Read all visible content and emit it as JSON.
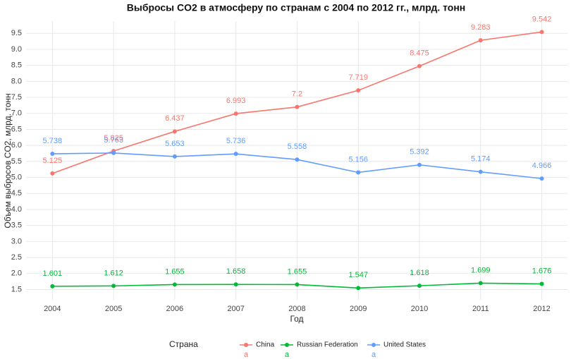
{
  "chart_data": {
    "type": "line",
    "title": "Выбросы CO2 в атмосферу по странам с 2004 по 2012 гг., млрд. тонн",
    "x_label": "Год",
    "y_label": "Объем выбросов CO2, млрд. тонн",
    "legend_title": "Страна",
    "legend_key_text": "a",
    "legend_position": "bottom",
    "grid": true,
    "x": [
      2004,
      2005,
      2006,
      2007,
      2008,
      2009,
      2010,
      2011,
      2012
    ],
    "xlim": [
      2003.57,
      2012.42
    ],
    "xticks": [
      2004,
      2005,
      2006,
      2007,
      2008,
      2009,
      2010,
      2011,
      2012
    ],
    "ylim": [
      1.18,
      9.88
    ],
    "yticks": [
      1.5,
      {
        "value": 2,
        "label": "2.0"
      },
      2.5,
      {
        "value": 3,
        "label": "3.0"
      },
      3.5,
      {
        "value": 4,
        "label": "4.0"
      },
      4.5,
      {
        "value": 5,
        "label": "5.0"
      },
      5.5,
      {
        "value": 6,
        "label": "6.0"
      },
      6.5,
      {
        "value": 7,
        "label": "7.0"
      },
      7.5,
      {
        "value": 8,
        "label": "8.0"
      },
      8.5,
      {
        "value": 9,
        "label": "9.0"
      },
      9.5
    ],
    "series": [
      {
        "name": "China",
        "color": "#f8766d",
        "values": [
          5.125,
          5.825,
          6.437,
          6.993,
          7.2,
          7.719,
          8.475,
          9.283,
          9.542
        ]
      },
      {
        "name": "Russian Federation",
        "color": "#00ba38",
        "values": [
          1.601,
          1.612,
          1.655,
          1.658,
          1.655,
          1.547,
          1.618,
          1.699,
          1.676
        ]
      },
      {
        "name": "United States",
        "color": "#619cff",
        "values": [
          5.738,
          5.763,
          5.653,
          5.736,
          5.558,
          5.156,
          5.392,
          5.174,
          4.966
        ]
      }
    ]
  }
}
